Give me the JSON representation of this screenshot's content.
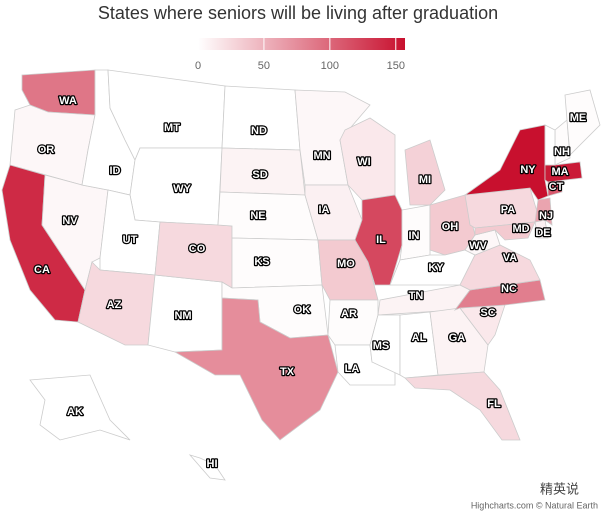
{
  "chart_data": {
    "type": "map",
    "title": "States where seniors will be living after graduation",
    "categories": [
      "WA",
      "OR",
      "CA",
      "NV",
      "ID",
      "MT",
      "WY",
      "UT",
      "AZ",
      "NM",
      "CO",
      "ND",
      "SD",
      "NE",
      "KS",
      "OK",
      "TX",
      "MN",
      "IA",
      "MO",
      "AR",
      "LA",
      "WI",
      "IL",
      "MI",
      "IN",
      "OH",
      "KY",
      "TN",
      "MS",
      "AL",
      "GA",
      "FL",
      "SC",
      "NC",
      "VA",
      "WV",
      "PA",
      "NY",
      "MD",
      "DE",
      "NJ",
      "CT",
      "MA",
      "NH",
      "ME",
      null,
      "AK",
      "HI"
    ],
    "values": [
      90,
      5,
      140,
      5,
      0,
      0,
      0,
      0,
      25,
      0,
      25,
      0,
      8,
      2,
      2,
      2,
      75,
      5,
      10,
      35,
      2,
      0,
      15,
      120,
      30,
      2,
      35,
      0,
      8,
      0,
      0,
      8,
      25,
      15,
      85,
      25,
      5,
      25,
      160,
      35,
      10,
      60,
      110,
      150,
      2,
      2,
      0,
      0,
      0
    ],
    "color_axis": {
      "min": 0,
      "max": 157,
      "ticks": [
        0,
        50,
        100,
        150
      ],
      "min_color": "#ffffff",
      "max_color": "#c8102e"
    },
    "null_color": "#ffffff",
    "border_color": "#cccccc",
    "credits": "Highcharts.com © Natural Earth",
    "watermark": "精英说"
  }
}
